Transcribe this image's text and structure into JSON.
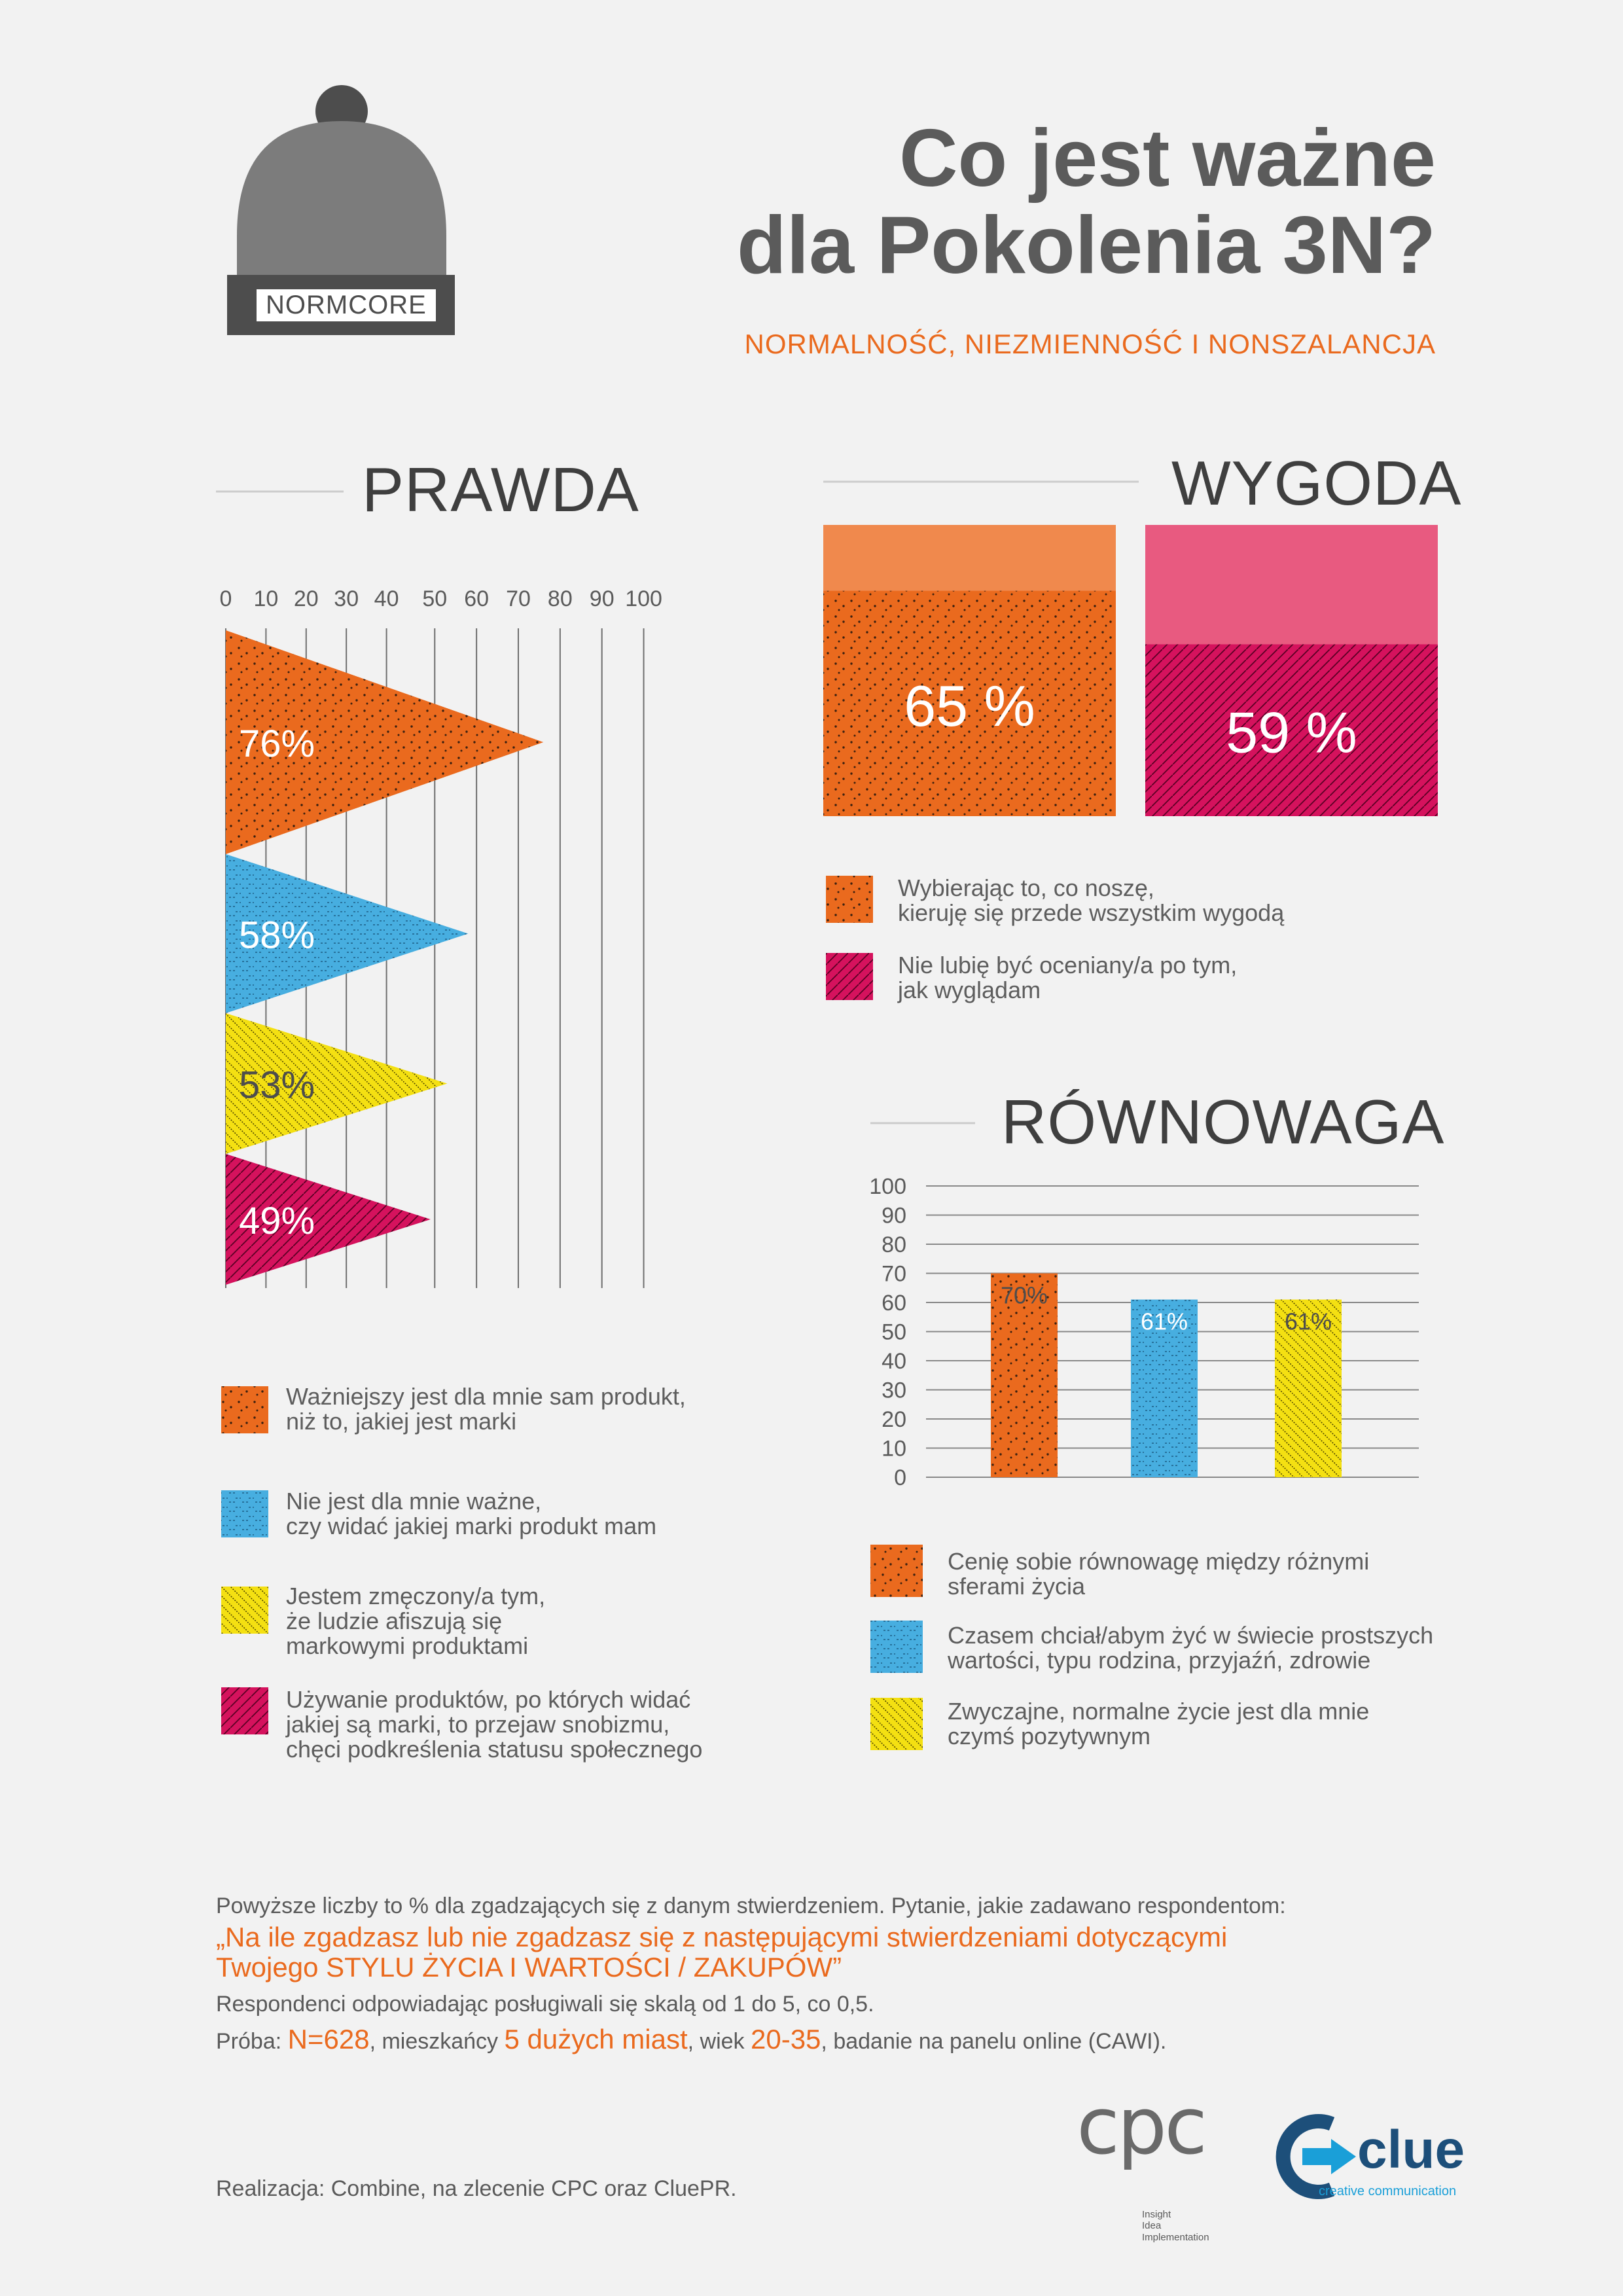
{
  "header": {
    "title_line1": "Co jest ważne",
    "title_line2": "dla Pokolenia 3N?",
    "subtitle": "NORMALNOŚĆ, NIEZMIENNOŚĆ I NONSZALANCJA",
    "hat_label": "NORMCORE"
  },
  "colors": {
    "orange": "#ea6a1e",
    "blue": "#47aee0",
    "yellow": "#f4e012",
    "magenta": "#d5125d",
    "orange_light": "#f0894d",
    "magenta_light": "#e85a80",
    "grey_hat": "#7c7c7c",
    "grey_dark": "#4d4d4d"
  },
  "chart_data": [
    {
      "id": "prawda",
      "type": "bar",
      "orientation": "horizontal",
      "title": "PRAWDA",
      "ticks": [
        "0",
        "10",
        "20",
        "30",
        "40",
        "50",
        "60",
        "70",
        "80",
        "90",
        "100"
      ],
      "xlim": [
        0,
        100
      ],
      "values": [
        76,
        58,
        53,
        49
      ],
      "labels": [
        "76%",
        "58%",
        "53%",
        "49%"
      ],
      "series_colors": [
        "#ea6a1e",
        "#47aee0",
        "#f4e012",
        "#d5125d"
      ],
      "legend": [
        "Ważniejszy jest dla mnie sam produkt,\nniż to, jakiej jest marki",
        "Nie jest dla mnie ważne,\nczy widać jakiej marki produkt mam",
        "Jestem zmęczony/a tym,\nże ludzie afiszują się\nmarkowymi produktami",
        "Używanie produktów, po których widać\njakiej są marki, to przejaw snobizmu,\nchęci podkreślenia statusu społecznego"
      ]
    },
    {
      "id": "wygoda",
      "type": "bar",
      "title": "WYGODA",
      "ylim": [
        0,
        100
      ],
      "values": [
        65,
        59
      ],
      "labels": [
        "65 %",
        "59 %"
      ],
      "series_colors": [
        "#ea6a1e",
        "#d5125d"
      ],
      "legend": [
        "Wybierając to, co noszę,\nkieruję się przede wszystkim wygodą",
        "Nie lubię być oceniany/a po tym,\njak wyglądam"
      ]
    },
    {
      "id": "rownowaga",
      "type": "bar",
      "title": "RÓWNOWAGA",
      "ticks": [
        "100",
        "90",
        "80",
        "70",
        "60",
        "50",
        "40",
        "30",
        "20",
        "10",
        "0"
      ],
      "ylim": [
        0,
        100
      ],
      "values": [
        70,
        61,
        61
      ],
      "labels": [
        "70%",
        "61%",
        "61%"
      ],
      "series_colors": [
        "#ea6a1e",
        "#47aee0",
        "#f4e012"
      ],
      "legend": [
        "Cenię sobie równowagę między różnymi\nsferami życia",
        "Czasem chciał/abym żyć w świecie prostszych\nwartości, typu rodzina, przyjaźń, zdrowie",
        "Zwyczajne, normalne życie jest dla mnie\nczymś pozytywnym"
      ]
    }
  ],
  "footer": {
    "line1": "Powyższe liczby to % dla zgadzających się z danym stwierdzeniem. Pytanie, jakie zadawano respondentom:",
    "quote_line1": "„Na ile zgadzasz lub nie zgadzasz się z następującymi stwierdzeniami dotyczącymi",
    "quote_line2": "Twojego STYLU ŻYCIA I WARTOŚCI / ZAKUPÓW”",
    "line3": "Respondenci odpowiadając posługiwali się skalą od 1 do 5, co 0,5.",
    "sample_prefix": "Próba: ",
    "sample_n": "N=628",
    "sample_mid1": ", mieszkańcy ",
    "sample_cities": "5 dużych miast",
    "sample_mid2": ", wiek ",
    "sample_age": "20-35",
    "sample_suffix": ", badanie na panelu online (CAWI).",
    "credits": "Realizacja: Combine, na zlecenie CPC oraz CluePR."
  },
  "logos": {
    "cpc": "cpc",
    "cpc_tag1": "Insight",
    "cpc_tag2": "Idea",
    "cpc_tag3": "Implementation",
    "clue": "clue",
    "clue_tag": "creative communication",
    "clue_icon": "arrow-c-icon"
  }
}
